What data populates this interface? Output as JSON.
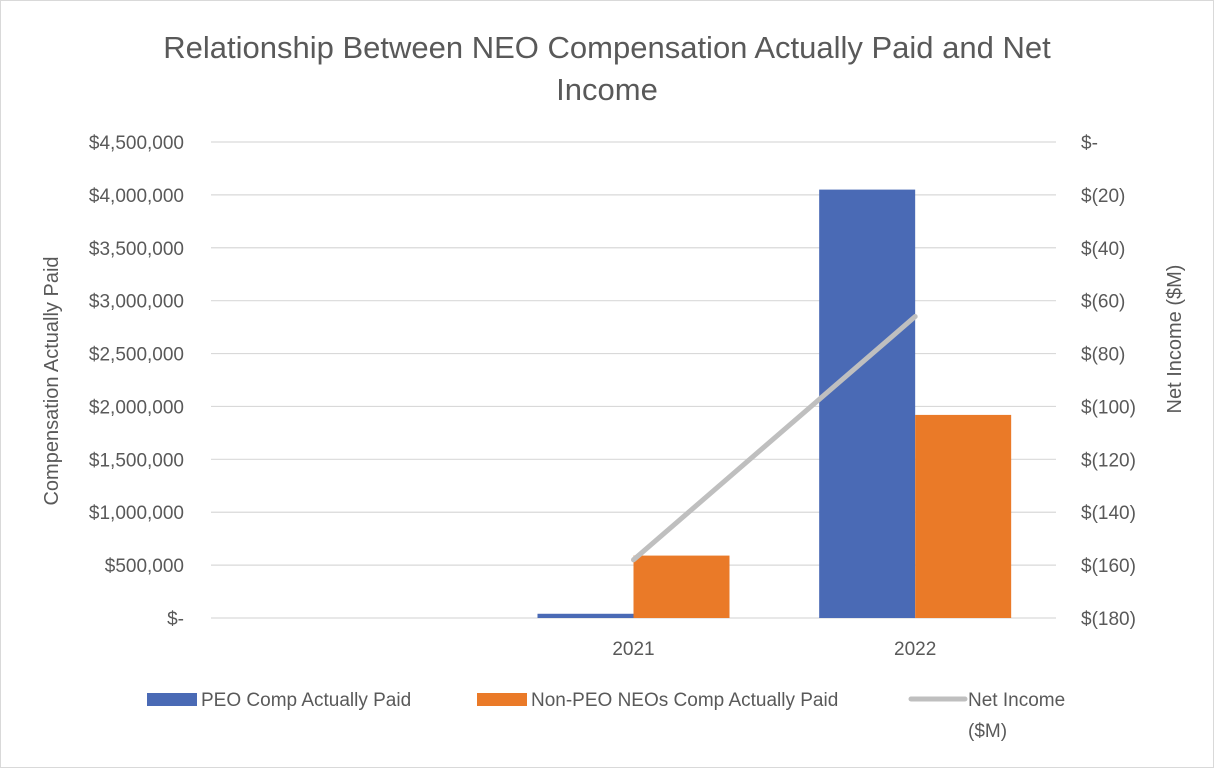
{
  "chart_data": {
    "type": "bar",
    "title_lines": [
      "Relationship Between NEO Compensation Actually Paid and Net",
      "Income"
    ],
    "categories": [
      "",
      "2021",
      "2022"
    ],
    "series": [
      {
        "name": "PEO Comp Actually Paid",
        "type": "bar",
        "axis": "left",
        "color": "#4a6ab5",
        "values": [
          null,
          40000,
          4050000
        ]
      },
      {
        "name": "Non-PEO NEOs Comp Actually Paid",
        "type": "bar",
        "axis": "left",
        "color": "#ea7a28",
        "values": [
          null,
          590000,
          1920000
        ]
      },
      {
        "name": "Net Income ($M)",
        "type": "line",
        "axis": "right",
        "color": "#bfbfbf",
        "values": [
          null,
          -158,
          -66
        ]
      }
    ],
    "y_left": {
      "label": "Compensation Actually Paid",
      "min": 0,
      "max": 4500000,
      "ticks": [
        0,
        500000,
        1000000,
        1500000,
        2000000,
        2500000,
        3000000,
        3500000,
        4000000,
        4500000
      ],
      "tick_labels": [
        "$-",
        "$500,000",
        "$1,000,000",
        "$1,500,000",
        "$2,000,000",
        "$2,500,000",
        "$3,000,000",
        "$3,500,000",
        "$4,000,000",
        "$4,500,000"
      ]
    },
    "y_right": {
      "label": "Net Income ($M)",
      "min": -180,
      "max": 0,
      "ticks": [
        -180,
        -160,
        -140,
        -120,
        -100,
        -80,
        -60,
        -40,
        -20,
        0
      ],
      "tick_labels": [
        "$(180)",
        "$(160)",
        "$(140)",
        "$(120)",
        "$(100)",
        "$(80)",
        "$(60)",
        "$(40)",
        "$(20)",
        "$-"
      ]
    },
    "legend": {
      "position": "bottom",
      "entries": [
        {
          "lines": [
            "PEO Comp Actually Paid"
          ]
        },
        {
          "lines": [
            "Non-PEO NEOs Comp Actually Paid"
          ]
        },
        {
          "lines": [
            "Net Income",
            "($M)"
          ]
        }
      ]
    },
    "grid": true
  }
}
